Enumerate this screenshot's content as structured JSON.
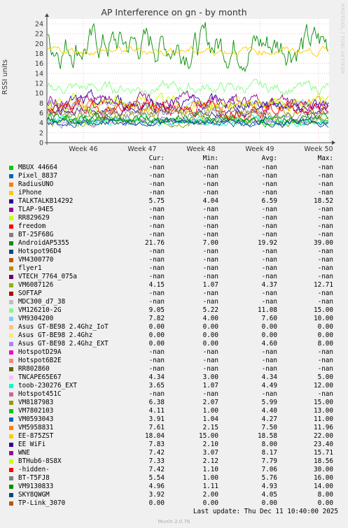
{
  "chart_data": {
    "type": "line",
    "title": "AP Interference on gn - by month",
    "ylabel": "RSSI units",
    "ylim": [
      0,
      25
    ],
    "yticks": [
      0,
      2,
      4,
      6,
      8,
      10,
      12,
      14,
      16,
      18,
      20,
      22,
      24
    ],
    "xticks": [
      "Week 46",
      "Week 47",
      "Week 48",
      "Week 49",
      "Week 50"
    ],
    "grid": true,
    "legend_columns": [
      "Cur:",
      "Min:",
      "Avg:",
      "Max:"
    ],
    "series": [
      {
        "name": "MBUX 44664",
        "color": "#00cc00",
        "cur": "-nan",
        "min": "-nan",
        "avg": "-nan",
        "max": "-nan"
      },
      {
        "name": "Pixel_8837",
        "color": "#0066b3",
        "cur": "-nan",
        "min": "-nan",
        "avg": "-nan",
        "max": "-nan"
      },
      {
        "name": "RadiusUNO",
        "color": "#ff8000",
        "cur": "-nan",
        "min": "-nan",
        "avg": "-nan",
        "max": "-nan"
      },
      {
        "name": "iPhone",
        "color": "#ffcc00",
        "cur": "-nan",
        "min": "-nan",
        "avg": "-nan",
        "max": "-nan"
      },
      {
        "name": "TALKTALKB14292",
        "color": "#330099",
        "cur": "5.75",
        "min": "4.04",
        "avg": "6.59",
        "max": "18.52"
      },
      {
        "name": "TLAP-94E5",
        "color": "#990099",
        "cur": "-nan",
        "min": "-nan",
        "avg": "-nan",
        "max": "-nan"
      },
      {
        "name": "RR829629",
        "color": "#ccff00",
        "cur": "-nan",
        "min": "-nan",
        "avg": "-nan",
        "max": "-nan"
      },
      {
        "name": "freedom",
        "color": "#ff0000",
        "cur": "-nan",
        "min": "-nan",
        "avg": "-nan",
        "max": "-nan"
      },
      {
        "name": "BT-25F68G",
        "color": "#808080",
        "cur": "-nan",
        "min": "-nan",
        "avg": "-nan",
        "max": "-nan"
      },
      {
        "name": "AndroidAP5355",
        "color": "#008f00",
        "cur": "21.76",
        "min": "7.00",
        "avg": "19.92",
        "max": "39.00"
      },
      {
        "name": "Hotspot96D4",
        "color": "#00487d",
        "cur": "-nan",
        "min": "-nan",
        "avg": "-nan",
        "max": "-nan"
      },
      {
        "name": "VM4300770",
        "color": "#b35a00",
        "cur": "-nan",
        "min": "-nan",
        "avg": "-nan",
        "max": "-nan"
      },
      {
        "name": "flyer1",
        "color": "#b38f00",
        "cur": "-nan",
        "min": "-nan",
        "avg": "-nan",
        "max": "-nan"
      },
      {
        "name": "VTECH_7764_075a",
        "color": "#6b006b",
        "cur": "-nan",
        "min": "-nan",
        "avg": "-nan",
        "max": "-nan"
      },
      {
        "name": "VM6087126",
        "color": "#8fb300",
        "cur": "4.15",
        "min": "1.07",
        "avg": "4.37",
        "max": "12.71"
      },
      {
        "name": "SOFTAP",
        "color": "#b30000",
        "cur": "-nan",
        "min": "-nan",
        "avg": "-nan",
        "max": "-nan"
      },
      {
        "name": "MDC300_d7_38",
        "color": "#bebebe",
        "cur": "-nan",
        "min": "-nan",
        "avg": "-nan",
        "max": "-nan"
      },
      {
        "name": "VM126210-2G",
        "color": "#80ff80",
        "cur": "9.05",
        "min": "5.22",
        "avg": "11.08",
        "max": "15.00"
      },
      {
        "name": "VM9304200",
        "color": "#80c9ff",
        "cur": "7.82",
        "min": "4.00",
        "avg": "7.60",
        "max": "10.00"
      },
      {
        "name": "Asus GT-BE98 2.4Ghz_IoT",
        "color": "#ffc080",
        "cur": "0.00",
        "min": "0.00",
        "avg": "0.00",
        "max": "0.00"
      },
      {
        "name": "Asus GT-BE98 2.4Ghz",
        "color": "#ffe680",
        "cur": "0.00",
        "min": "0.00",
        "avg": "0.00",
        "max": "0.00"
      },
      {
        "name": "Asus GT-BE98 2.4Ghz_EXT",
        "color": "#aa80ff",
        "cur": "0.00",
        "min": "0.00",
        "avg": "4.60",
        "max": "8.00"
      },
      {
        "name": "HotspotD29A",
        "color": "#ee00cc",
        "cur": "-nan",
        "min": "-nan",
        "avg": "-nan",
        "max": "-nan"
      },
      {
        "name": "Hotspot6B2E",
        "color": "#ff8080",
        "cur": "-nan",
        "min": "-nan",
        "avg": "-nan",
        "max": "-nan"
      },
      {
        "name": "RR802860",
        "color": "#666600",
        "cur": "-nan",
        "min": "-nan",
        "avg": "-nan",
        "max": "-nan"
      },
      {
        "name": "TNCAPE65E67",
        "color": "#ffbfff",
        "cur": "4.34",
        "min": "3.00",
        "avg": "4.34",
        "max": "5.00"
      },
      {
        "name": "toob-230276_EXT",
        "color": "#00ffcc",
        "cur": "3.65",
        "min": "1.07",
        "avg": "4.49",
        "max": "12.00"
      },
      {
        "name": "Hotspot451C",
        "color": "#cc6699",
        "cur": "-nan",
        "min": "-nan",
        "avg": "-nan",
        "max": "-nan"
      },
      {
        "name": "VM8187983",
        "color": "#999900",
        "cur": "6.38",
        "min": "2.07",
        "avg": "5.99",
        "max": "15.00"
      },
      {
        "name": "VM7802103",
        "color": "#00cc00",
        "cur": "4.11",
        "min": "1.00",
        "avg": "4.40",
        "max": "13.00"
      },
      {
        "name": "VM0593043",
        "color": "#0066b3",
        "cur": "3.91",
        "min": "1.04",
        "avg": "4.27",
        "max": "11.00"
      },
      {
        "name": "VM5958831",
        "color": "#ff8000",
        "cur": "7.61",
        "min": "2.15",
        "avg": "7.50",
        "max": "11.96"
      },
      {
        "name": "EE-875ZST",
        "color": "#ffcc00",
        "cur": "18.04",
        "min": "15.00",
        "avg": "18.58",
        "max": "22.00"
      },
      {
        "name": "EE WiFi",
        "color": "#330099",
        "cur": "7.83",
        "min": "2.10",
        "avg": "8.00",
        "max": "23.40"
      },
      {
        "name": "WNE",
        "color": "#990099",
        "cur": "7.42",
        "min": "3.07",
        "avg": "8.17",
        "max": "15.71"
      },
      {
        "name": "BTHub6-8S8X",
        "color": "#ccff00",
        "cur": "7.33",
        "min": "2.12",
        "avg": "7.79",
        "max": "18.56"
      },
      {
        "name": "-hidden-",
        "color": "#ff0000",
        "cur": "7.42",
        "min": "1.10",
        "avg": "7.06",
        "max": "30.00"
      },
      {
        "name": "BT-T5FJ8",
        "color": "#808080",
        "cur": "5.54",
        "min": "1.00",
        "avg": "5.76",
        "max": "16.00"
      },
      {
        "name": "VM9130833",
        "color": "#008f00",
        "cur": "4.96",
        "min": "1.11",
        "avg": "4.93",
        "max": "14.00"
      },
      {
        "name": "SKY8QWGM",
        "color": "#00487d",
        "cur": "3.92",
        "min": "2.00",
        "avg": "4.05",
        "max": "8.00"
      },
      {
        "name": "TP-Link_3070",
        "color": "#b35a00",
        "cur": "0.00",
        "min": "0.00",
        "avg": "0.00",
        "max": "0.00"
      }
    ]
  },
  "side_label": "RRDTOOL / TOBI OETIKER",
  "last_update": "Last update: Thu Dec 11 10:40:00 2025",
  "footer": "Munin 2.0.76"
}
